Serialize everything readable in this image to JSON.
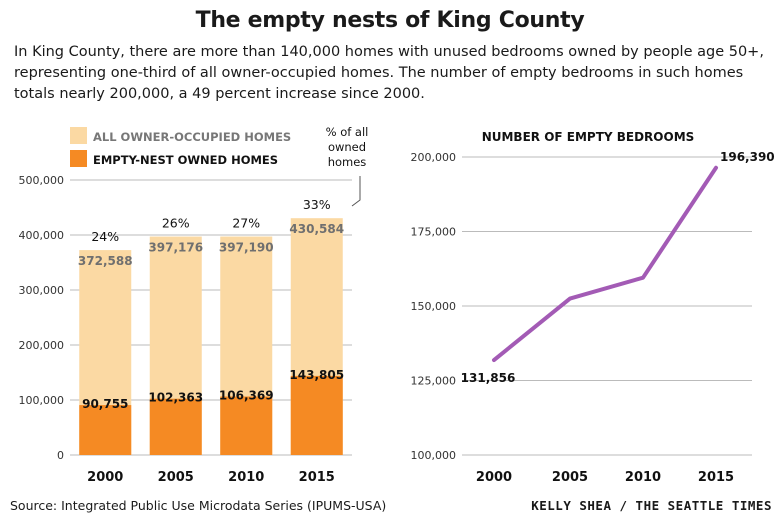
{
  "title": "The empty nests of King County",
  "subtitle": "In King County, there are more than 140,000 homes with unused bedrooms owned by people age 50+, representing one-third of all owner-occupied homes. The number of empty bedrooms in such homes totals nearly 200,000, a 49 percent increase since 2000.",
  "source": "Source: Integrated Public Use Microdata Series (IPUMS-USA)",
  "credit": "KELLY SHEA / THE SEATTLE TIMES",
  "colors": {
    "light": "#fbd9a3",
    "orange": "#f58a23",
    "purple": "#a35bb5",
    "grid": "#bbbbbb"
  },
  "chart_data": [
    {
      "type": "bar",
      "title": "",
      "categories": [
        "2000",
        "2005",
        "2010",
        "2015"
      ],
      "series": [
        {
          "name": "ALL OWNER-OCCUPIED HOMES",
          "values": [
            372588,
            397176,
            397190,
            430584
          ],
          "labels": [
            "372,588",
            "397,176",
            "397,190",
            "430,584"
          ]
        },
        {
          "name": "EMPTY-NEST OWNED HOMES",
          "values": [
            90755,
            102363,
            106369,
            143805
          ],
          "labels": [
            "90,755",
            "102,363",
            "106,369",
            "143,805"
          ]
        }
      ],
      "percent_labels": [
        "24%",
        "26%",
        "27%",
        "33%"
      ],
      "annotation": [
        "% of all",
        "owned",
        "homes"
      ],
      "ylim": [
        0,
        500000
      ],
      "yticks": [
        "0",
        "100,000",
        "200,000",
        "300,000",
        "400,000",
        "500,000"
      ],
      "yticks_values": [
        0,
        100000,
        200000,
        300000,
        400000,
        500000
      ],
      "legend_position": "top-left",
      "grid": true
    },
    {
      "type": "line",
      "title": "NUMBER OF EMPTY BEDROOMS",
      "x": [
        "2000",
        "2005",
        "2010",
        "2015"
      ],
      "series": [
        {
          "values": [
            131856,
            152500,
            159500,
            196390
          ]
        }
      ],
      "value_labels": {
        "first": "131,856",
        "last": "196,390"
      },
      "ylim": [
        100000,
        200000
      ],
      "yticks": [
        "100,000",
        "125,000",
        "150,000",
        "175,000",
        "200,000"
      ],
      "yticks_values": [
        100000,
        125000,
        150000,
        175000,
        200000
      ],
      "grid": true
    }
  ]
}
